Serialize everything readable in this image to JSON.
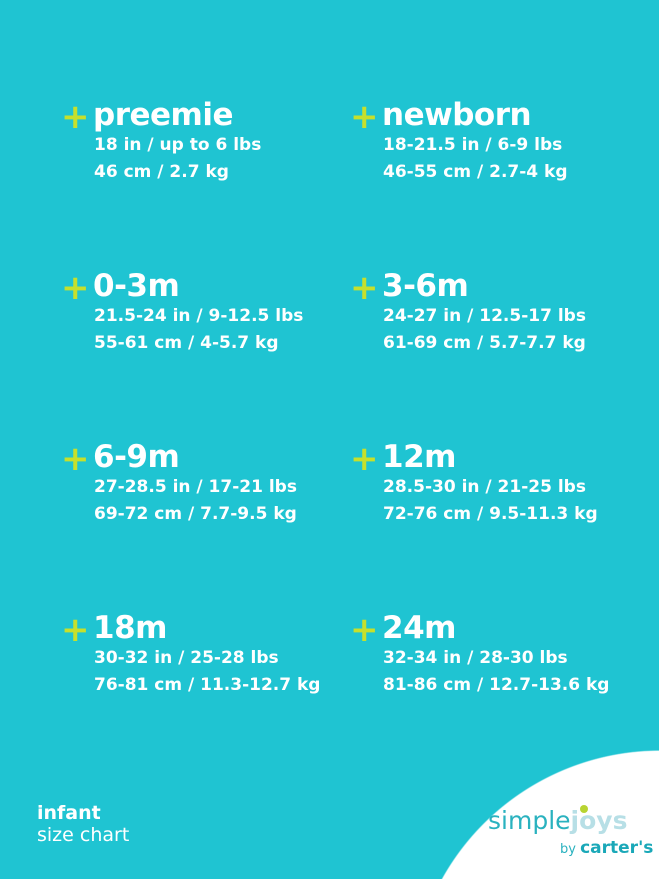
{
  "sizes": [
    {
      "name": "preemie",
      "line1": "18 in / up to 6 lbs",
      "line2": "46 cm / 2.7 kg"
    },
    {
      "name": "newborn",
      "line1": "18-21.5 in / 6-9 lbs",
      "line2": "46-55 cm / 2.7-4 kg"
    },
    {
      "name": "0-3m",
      "line1": "21.5-24 in / 9-12.5 lbs",
      "line2": "55-61 cm / 4-5.7 kg"
    },
    {
      "name": "3-6m",
      "line1": "24-27 in / 12.5-17 lbs",
      "line2": "61-69 cm / 5.7-7.7 kg"
    },
    {
      "name": "6-9m",
      "line1": "27-28.5 in / 17-21 lbs",
      "line2": "69-72 cm / 7.7-9.5 kg"
    },
    {
      "name": "12m",
      "line1": "28.5-30 in / 21-25 lbs",
      "line2": "72-76 cm / 9.5-11.3 kg"
    },
    {
      "name": "18m",
      "line1": "30-32 in / 25-28 lbs",
      "line2": "76-81 cm / 11.3-12.7 kg"
    },
    {
      "name": "24m",
      "line1": "32-34 in / 28-30 lbs",
      "line2": "81-86 cm / 12.7-13.6 kg"
    }
  ],
  "plus_symbol": "+",
  "footer": {
    "title": "infant",
    "subtitle": "size chart"
  },
  "logo": {
    "simple": "simple",
    "joys": "joys",
    "by": "by",
    "carters": "carter's"
  },
  "colors": {
    "background": "#1fc4d2",
    "plus": "#c6e02c"
  }
}
